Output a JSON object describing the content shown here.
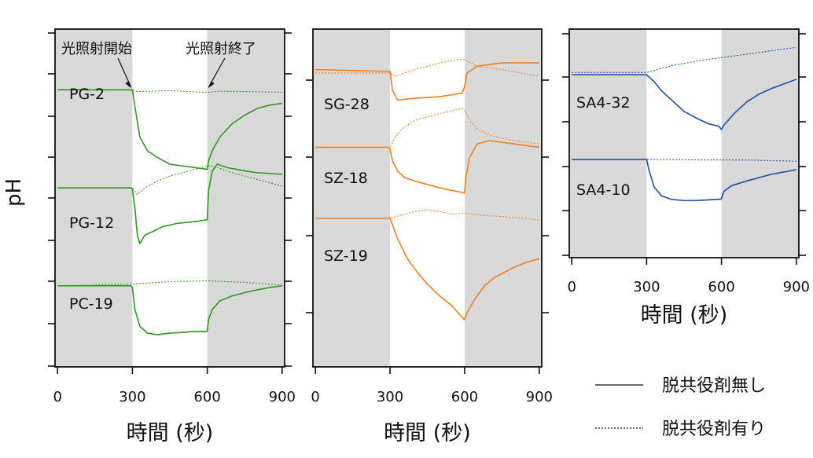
{
  "figure": {
    "ylabel": "pH",
    "xlabel": "時間 (秒)",
    "legend": {
      "position": "bottom-right",
      "solid_label": "脱共役剤無し",
      "dotted_label": "脱共役剤有り"
    },
    "colors": {
      "green": "#3a9a2c",
      "orange": "#f0862a",
      "blue": "#2a56a3",
      "dark_shade": "#d9d9d9",
      "light_shade": "#ffffff"
    }
  },
  "chart_data": [
    {
      "type": "line",
      "id": "panel-left",
      "color": "#3a9a2c",
      "xlabel": "時間 (秒)",
      "xlim": [
        -10,
        910
      ],
      "xticks": [
        0,
        300,
        600,
        900
      ],
      "ylim": [
        0,
        100
      ],
      "light_on": [
        300,
        600
      ],
      "annotations": [
        {
          "text": "光照射開始",
          "x": 300
        },
        {
          "text": "光照射終了",
          "x": 600
        }
      ],
      "series": [
        {
          "name": "PG-2",
          "solid": [
            [
              0,
              82
            ],
            [
              295,
              82
            ],
            [
              300,
              82
            ],
            [
              310,
              77
            ],
            [
              330,
              68
            ],
            [
              360,
              64
            ],
            [
              400,
              62
            ],
            [
              450,
              60
            ],
            [
              500,
              59.5
            ],
            [
              550,
              59
            ],
            [
              598,
              58.5
            ],
            [
              600,
              58.5
            ],
            [
              605,
              61
            ],
            [
              620,
              64
            ],
            [
              650,
              68
            ],
            [
              700,
              72
            ],
            [
              750,
              74.5
            ],
            [
              800,
              76.5
            ],
            [
              850,
              77.5
            ],
            [
              900,
              78
            ]
          ],
          "dotted": [
            [
              0,
              82
            ],
            [
              300,
              82
            ],
            [
              320,
              81.5
            ],
            [
              450,
              81.8
            ],
            [
              600,
              81.2
            ],
            [
              650,
              81.6
            ],
            [
              900,
              81.3
            ]
          ]
        },
        {
          "name": "PG-12",
          "solid": [
            [
              0,
              53
            ],
            [
              295,
              53
            ],
            [
              300,
              52.5
            ],
            [
              310,
              47
            ],
            [
              320,
              39
            ],
            [
              330,
              36.5
            ],
            [
              350,
              39
            ],
            [
              380,
              40
            ],
            [
              420,
              41.5
            ],
            [
              480,
              42.5
            ],
            [
              550,
              43
            ],
            [
              598,
              43.5
            ],
            [
              600,
              43.5
            ],
            [
              605,
              52
            ],
            [
              620,
              58
            ],
            [
              640,
              60
            ],
            [
              680,
              59
            ],
            [
              750,
              58
            ],
            [
              800,
              57.5
            ],
            [
              900,
              57
            ]
          ],
          "dotted": [
            [
              0,
              53
            ],
            [
              300,
              53
            ],
            [
              320,
              51
            ],
            [
              350,
              53
            ],
            [
              400,
              55
            ],
            [
              450,
              56.5
            ],
            [
              500,
              57.5
            ],
            [
              550,
              58.5
            ],
            [
              600,
              59.5
            ],
            [
              620,
              59.5
            ],
            [
              700,
              57.5
            ],
            [
              800,
              55.5
            ],
            [
              900,
              53.5
            ]
          ]
        },
        {
          "name": "PC-19",
          "solid": [
            [
              0,
              24
            ],
            [
              295,
              24
            ],
            [
              300,
              23.5
            ],
            [
              310,
              17
            ],
            [
              330,
              12
            ],
            [
              360,
              10
            ],
            [
              400,
              9.5
            ],
            [
              450,
              10
            ],
            [
              500,
              10.2
            ],
            [
              550,
              10.5
            ],
            [
              598,
              10.5
            ],
            [
              600,
              10.5
            ],
            [
              605,
              14
            ],
            [
              620,
              17
            ],
            [
              650,
              19.5
            ],
            [
              700,
              21
            ],
            [
              750,
              22
            ],
            [
              800,
              22.8
            ],
            [
              850,
              23.5
            ],
            [
              900,
              24
            ]
          ],
          "dotted": [
            [
              0,
              24
            ],
            [
              300,
              24.5
            ],
            [
              450,
              25.2
            ],
            [
              600,
              25.5
            ],
            [
              750,
              25
            ],
            [
              900,
              24.2
            ]
          ]
        }
      ]
    },
    {
      "type": "line",
      "id": "panel-middle",
      "color": "#f0862a",
      "xlabel": "時間 (秒)",
      "xlim": [
        -10,
        910
      ],
      "xticks": [
        0,
        300,
        600,
        900
      ],
      "ylim": [
        0,
        100
      ],
      "light_on": [
        300,
        600
      ],
      "series": [
        {
          "name": "SG-28",
          "solid": [
            [
              0,
              88
            ],
            [
              295,
              87.5
            ],
            [
              300,
              87.5
            ],
            [
              310,
              82
            ],
            [
              330,
              79
            ],
            [
              400,
              79.5
            ],
            [
              500,
              80
            ],
            [
              590,
              81
            ],
            [
              600,
              83
            ],
            [
              610,
              87
            ],
            [
              650,
              89
            ],
            [
              750,
              90
            ],
            [
              900,
              90
            ]
          ],
          "dotted": [
            [
              0,
              87
            ],
            [
              300,
              87
            ],
            [
              320,
              86
            ],
            [
              400,
              88
            ],
            [
              500,
              90
            ],
            [
              580,
              91
            ],
            [
              600,
              91
            ],
            [
              650,
              89
            ],
            [
              750,
              88
            ],
            [
              900,
              86
            ]
          ]
        },
        {
          "name": "SZ-18",
          "solid": [
            [
              0,
              65
            ],
            [
              295,
              65
            ],
            [
              300,
              64.5
            ],
            [
              310,
              61
            ],
            [
              330,
              58
            ],
            [
              360,
              56
            ],
            [
              400,
              55
            ],
            [
              450,
              54
            ],
            [
              500,
              53
            ],
            [
              550,
              52.2
            ],
            [
              598,
              51.5
            ],
            [
              600,
              51.5
            ],
            [
              605,
              56
            ],
            [
              620,
              62
            ],
            [
              650,
              66
            ],
            [
              700,
              67
            ],
            [
              750,
              66.5
            ],
            [
              800,
              66
            ],
            [
              900,
              65
            ]
          ],
          "dotted": [
            [
              0,
              65
            ],
            [
              300,
              65
            ],
            [
              320,
              68
            ],
            [
              350,
              70.5
            ],
            [
              400,
              73
            ],
            [
              450,
              74
            ],
            [
              500,
              75
            ],
            [
              550,
              75.8
            ],
            [
              590,
              76.5
            ],
            [
              600,
              76
            ],
            [
              620,
              73
            ],
            [
              650,
              70.5
            ],
            [
              700,
              68.5
            ],
            [
              800,
              67
            ],
            [
              900,
              66
            ]
          ]
        },
        {
          "name": "SZ-19",
          "solid": [
            [
              0,
              44
            ],
            [
              295,
              44
            ],
            [
              300,
              44
            ],
            [
              330,
              38
            ],
            [
              370,
              32
            ],
            [
              410,
              28
            ],
            [
              450,
              24.5
            ],
            [
              500,
              21
            ],
            [
              550,
              18
            ],
            [
              598,
              14
            ],
            [
              600,
              14
            ],
            [
              610,
              16
            ],
            [
              640,
              20
            ],
            [
              680,
              24
            ],
            [
              720,
              26.5
            ],
            [
              800,
              29.5
            ],
            [
              850,
              31
            ],
            [
              900,
              32
            ]
          ],
          "dotted": [
            [
              0,
              44
            ],
            [
              300,
              44
            ],
            [
              350,
              45
            ],
            [
              400,
              46
            ],
            [
              450,
              46.5
            ],
            [
              500,
              46
            ],
            [
              550,
              45.2
            ],
            [
              600,
              45.5
            ],
            [
              650,
              45
            ],
            [
              750,
              44.5
            ],
            [
              900,
              43.5
            ]
          ]
        }
      ]
    },
    {
      "type": "line",
      "id": "panel-right",
      "color": "#2a56a3",
      "xlabel": "時間 (秒)",
      "xlim": [
        -10,
        910
      ],
      "xticks": [
        0,
        300,
        600,
        900
      ],
      "ylim": [
        0,
        100
      ],
      "light_on": [
        300,
        600
      ],
      "series": [
        {
          "name": "SA4-32",
          "solid": [
            [
              0,
              80
            ],
            [
              300,
              80
            ],
            [
              310,
              79
            ],
            [
              330,
              77
            ],
            [
              360,
              73
            ],
            [
              400,
              69
            ],
            [
              450,
              64
            ],
            [
              500,
              61
            ],
            [
              550,
              58.5
            ],
            [
              590,
              57.5
            ],
            [
              600,
              56
            ],
            [
              610,
              58
            ],
            [
              650,
              63
            ],
            [
              700,
              68
            ],
            [
              750,
              71.5
            ],
            [
              800,
              74
            ],
            [
              850,
              76
            ],
            [
              900,
              78
            ]
          ],
          "dotted": [
            [
              0,
              81
            ],
            [
              300,
              81
            ],
            [
              350,
              82.5
            ],
            [
              400,
              84
            ],
            [
              450,
              85
            ],
            [
              500,
              86
            ],
            [
              550,
              86.8
            ],
            [
              600,
              87.5
            ],
            [
              700,
              89
            ],
            [
              800,
              90.5
            ],
            [
              900,
              92
            ]
          ]
        },
        {
          "name": "SA4-10",
          "solid": [
            [
              0,
              43
            ],
            [
              300,
              43
            ],
            [
              310,
              38
            ],
            [
              330,
              31
            ],
            [
              360,
              27
            ],
            [
              400,
              25.5
            ],
            [
              450,
              25
            ],
            [
              500,
              25
            ],
            [
              550,
              25.3
            ],
            [
              598,
              25.6
            ],
            [
              600,
              26
            ],
            [
              610,
              29
            ],
            [
              640,
              31.5
            ],
            [
              700,
              33.5
            ],
            [
              750,
              35
            ],
            [
              800,
              36.5
            ],
            [
              850,
              37.5
            ],
            [
              900,
              38.5
            ]
          ],
          "dotted": [
            [
              0,
              43
            ],
            [
              300,
              43
            ],
            [
              500,
              42.8
            ],
            [
              700,
              42.7
            ],
            [
              900,
              42.2
            ]
          ]
        }
      ]
    }
  ]
}
